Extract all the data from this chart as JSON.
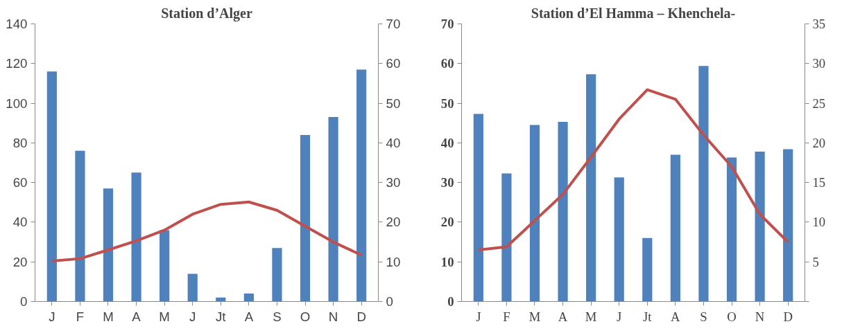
{
  "chart_data": [
    {
      "type": "bar",
      "title": "Station d’Alger",
      "categories": [
        "J",
        "F",
        "M",
        "A",
        "M",
        "J",
        "Jt",
        "A",
        "S",
        "O",
        "N",
        "D"
      ],
      "series": [
        {
          "color": "#4f81bd",
          "values": [
            116,
            76,
            57,
            65,
            36,
            14,
            2,
            4,
            27,
            84,
            93,
            117
          ]
        },
        {
          "type": "line",
          "axis": "y2",
          "color": "#c0504d",
          "values": [
            10.2,
            10.8,
            13,
            15.3,
            18,
            22,
            24.5,
            25.1,
            23,
            19,
            15,
            11.7
          ]
        }
      ],
      "ylim": [
        0,
        140
      ],
      "yticks": [
        0,
        20,
        40,
        60,
        80,
        100,
        120,
        140
      ],
      "y2lim": [
        0,
        70
      ],
      "y2ticks": [
        0,
        10,
        20,
        30,
        40,
        50,
        60,
        70
      ],
      "grid": false,
      "marker": "none",
      "line_style": "solid"
    },
    {
      "type": "bar",
      "title": "Station d’El Hamma – Khenchela-",
      "categories": [
        "J",
        "F",
        "M",
        "A",
        "M",
        "J",
        "Jt",
        "A",
        "S",
        "O",
        "N",
        "D"
      ],
      "series": [
        {
          "color": "#4f81bd",
          "values": [
            47.3,
            32.3,
            44.5,
            45.3,
            57.3,
            31.3,
            16,
            37,
            59.4,
            36.3,
            37.8,
            38.4
          ]
        },
        {
          "type": "line",
          "axis": "y2",
          "color": "#c0504d",
          "values": [
            6.5,
            6.9,
            10.2,
            13.5,
            18.2,
            23,
            26.7,
            25.5,
            21,
            17,
            11,
            7.5
          ]
        }
      ],
      "ylim": [
        0,
        70
      ],
      "yticks": [
        0,
        10,
        20,
        30,
        40,
        50,
        60,
        70
      ],
      "y2lim": [
        0,
        35
      ],
      "y2ticks": [
        {
          "value": 0,
          "label": null
        },
        5,
        10,
        15,
        20,
        25,
        30,
        35
      ],
      "grid": false,
      "marker": "none",
      "line_style": "solid"
    }
  ]
}
